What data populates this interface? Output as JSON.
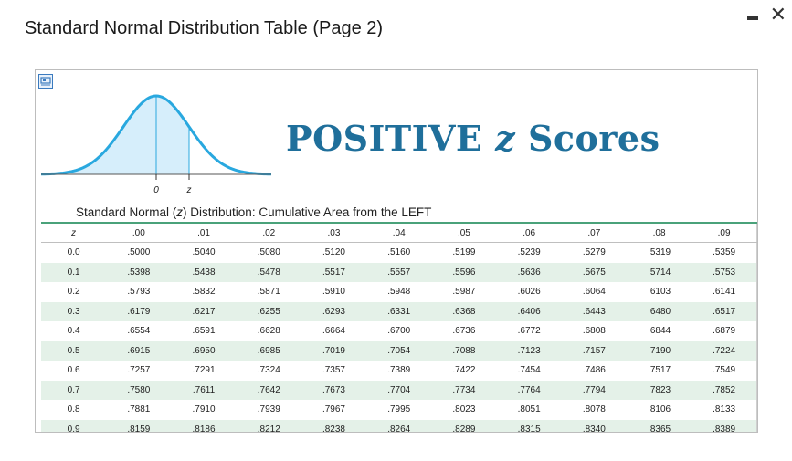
{
  "window": {
    "title": "Standard Normal Distribution Table (Page 2)"
  },
  "figure": {
    "label_zero": "0",
    "label_z": "z",
    "curve_color": "#29a8df",
    "fill_color": "#d6eefb"
  },
  "headline": {
    "prefix": "POSITIVE ",
    "z": "z",
    "suffix": " Scores"
  },
  "subtitle": {
    "before": "Standard Normal (",
    "z": "z",
    "after": ") Distribution: Cumulative Area from the LEFT"
  },
  "table": {
    "headers": [
      "z",
      ".00",
      ".01",
      ".02",
      ".03",
      ".04",
      ".05",
      ".06",
      ".07",
      ".08",
      ".09"
    ],
    "rows": [
      [
        "0.0",
        ".5000",
        ".5040",
        ".5080",
        ".5120",
        ".5160",
        ".5199",
        ".5239",
        ".5279",
        ".5319",
        ".5359"
      ],
      [
        "0.1",
        ".5398",
        ".5438",
        ".5478",
        ".5517",
        ".5557",
        ".5596",
        ".5636",
        ".5675",
        ".5714",
        ".5753"
      ],
      [
        "0.2",
        ".5793",
        ".5832",
        ".5871",
        ".5910",
        ".5948",
        ".5987",
        ".6026",
        ".6064",
        ".6103",
        ".6141"
      ],
      [
        "0.3",
        ".6179",
        ".6217",
        ".6255",
        ".6293",
        ".6331",
        ".6368",
        ".6406",
        ".6443",
        ".6480",
        ".6517"
      ],
      [
        "0.4",
        ".6554",
        ".6591",
        ".6628",
        ".6664",
        ".6700",
        ".6736",
        ".6772",
        ".6808",
        ".6844",
        ".6879"
      ],
      [
        "0.5",
        ".6915",
        ".6950",
        ".6985",
        ".7019",
        ".7054",
        ".7088",
        ".7123",
        ".7157",
        ".7190",
        ".7224"
      ],
      [
        "0.6",
        ".7257",
        ".7291",
        ".7324",
        ".7357",
        ".7389",
        ".7422",
        ".7454",
        ".7486",
        ".7517",
        ".7549"
      ],
      [
        "0.7",
        ".7580",
        ".7611",
        ".7642",
        ".7673",
        ".7704",
        ".7734",
        ".7764",
        ".7794",
        ".7823",
        ".7852"
      ],
      [
        "0.8",
        ".7881",
        ".7910",
        ".7939",
        ".7967",
        ".7995",
        ".8023",
        ".8051",
        ".8078",
        ".8106",
        ".8133"
      ],
      [
        "0.9",
        ".8159",
        ".8186",
        ".8212",
        ".8238",
        ".8264",
        ".8289",
        ".8315",
        ".8340",
        ".8365",
        ".8389"
      ]
    ]
  }
}
